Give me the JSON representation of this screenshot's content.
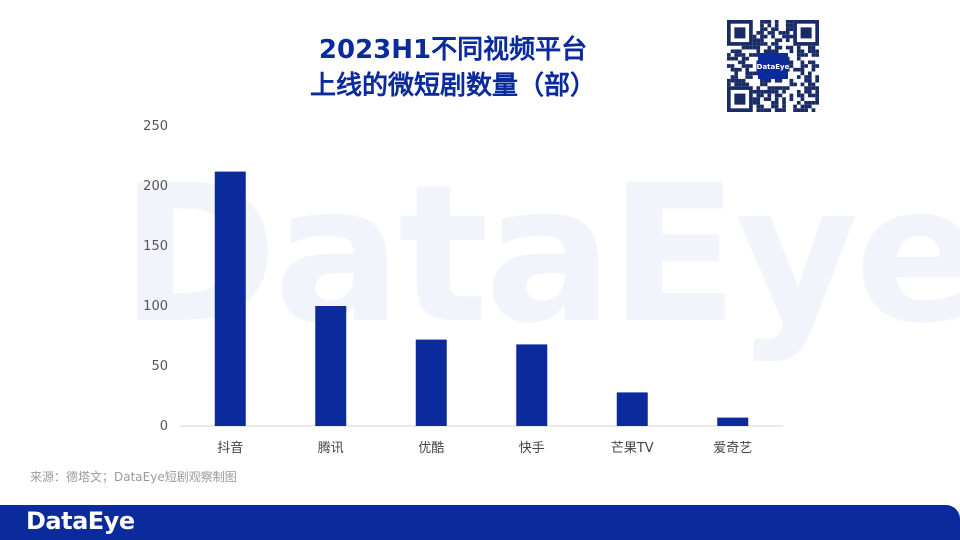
{
  "title_lines": [
    "2023H1不同视频平台",
    "上线的微短剧数量（部）"
  ],
  "source": "来源：德塔文；DataEye短剧观察制图",
  "footer_logo": "DataEye",
  "watermark": "DataEye",
  "qr_logo": "DataEye",
  "colors": {
    "bar": "#0b2a9c",
    "title": "#0b2a9c",
    "footer": "#0b2a9c"
  },
  "chart_data": {
    "type": "bar",
    "categories": [
      "抖音",
      "腾讯",
      "优酷",
      "快手",
      "芒果TV",
      "爱奇艺"
    ],
    "values": [
      212,
      100,
      72,
      68,
      28,
      7
    ],
    "ylim": [
      0,
      250
    ],
    "yticks": [
      0,
      50,
      100,
      150,
      200,
      250
    ],
    "grid": false,
    "legend": "none"
  }
}
